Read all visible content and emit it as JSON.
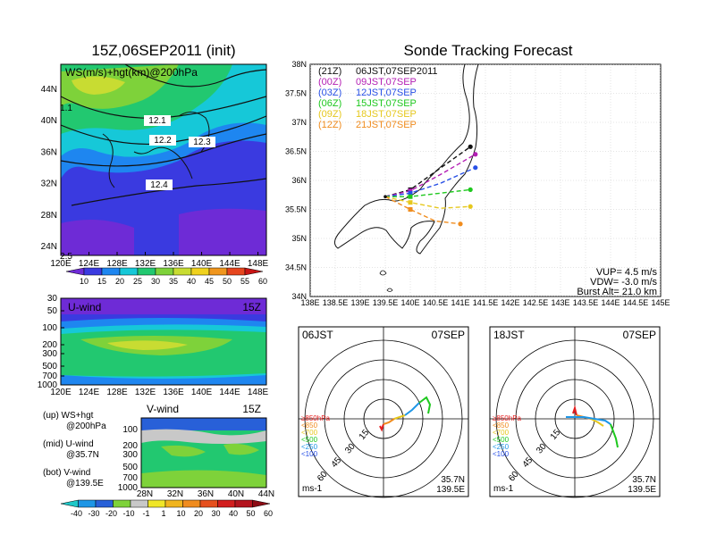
{
  "left_title": "15Z,06SEP2011 (init)",
  "right_title": "Sonde Tracking Forecast",
  "map_panel": {
    "label": "WS(m/s)+hgt(km)@200hPa",
    "x_ticks": [
      "120E",
      "124E",
      "128E",
      "132E",
      "136E",
      "140E",
      "144E",
      "148E"
    ],
    "y_ticks": [
      "44N",
      "40N",
      "36N",
      "32N",
      "28N",
      "24N"
    ],
    "contour_labels": [
      "12.1",
      "12.2",
      "12.3",
      "12.4",
      "1.1",
      "2.5"
    ],
    "colorbar": [
      "10",
      "15",
      "20",
      "25",
      "30",
      "35",
      "40",
      "45",
      "50",
      "55",
      "60"
    ],
    "colorbar_colors": [
      "#6e2bd6",
      "#3a3ae0",
      "#1e86f0",
      "#16c8d8",
      "#22c870",
      "#7ed23a",
      "#c8dc32",
      "#f0d21e",
      "#f0961e",
      "#e6461e",
      "#c81414"
    ]
  },
  "u_panel": {
    "label": "U-wind",
    "time": "15Z",
    "y_ticks": [
      "30",
      "50",
      "100",
      "200",
      "300",
      "500",
      "700",
      "1000"
    ],
    "x_ticks": [
      "120E",
      "124E",
      "128E",
      "132E",
      "136E",
      "140E",
      "144E",
      "148E"
    ]
  },
  "v_panel": {
    "label": "V-wind",
    "time": "15Z",
    "y_ticks": [
      "100",
      "200",
      "300",
      "500",
      "700",
      "1000"
    ],
    "x_ticks": [
      "28N",
      "32N",
      "36N",
      "40N",
      "44N"
    ]
  },
  "legend_notes": [
    [
      "(up) WS+hgt",
      "@200hPa"
    ],
    [
      "(mid) U-wind",
      "@35.7N"
    ],
    [
      "(bot) V-wind",
      "@139.5E"
    ]
  ],
  "bottom_colorbar": {
    "labels": [
      "-40",
      "-30",
      "-20",
      "-10",
      "-1",
      "1",
      "10",
      "20",
      "30",
      "40",
      "50",
      "60"
    ],
    "colors": [
      "#1ec8c8",
      "#1e96e6",
      "#2860d8",
      "#7ed23a",
      "#c8c8c8",
      "#f0e628",
      "#f0b41e",
      "#f08c1e",
      "#e6501e",
      "#d21e1e",
      "#b4141e",
      "#8c0a14"
    ]
  },
  "track_map": {
    "x_ticks": [
      "138E",
      "138.5E",
      "139E",
      "139.5E",
      "140E",
      "140.5E",
      "141E",
      "141.5E",
      "142E",
      "142.5E",
      "143E",
      "143.5E",
      "144E",
      "144.5E",
      "145E"
    ],
    "y_ticks": [
      "38N",
      "37.5N",
      "37N",
      "36.5N",
      "36N",
      "35.5N",
      "35N",
      "34.5N",
      "34N"
    ],
    "legend": [
      {
        "utc": "(21Z)",
        "jst": "06JST,07SEP2011",
        "color": "#111111"
      },
      {
        "utc": "(00Z)",
        "jst": "09JST,07SEP",
        "color": "#b41eb4"
      },
      {
        "utc": "(03Z)",
        "jst": "12JST,07SEP",
        "color": "#2850e6"
      },
      {
        "utc": "(06Z)",
        "jst": "15JST,07SEP",
        "color": "#1ec81e"
      },
      {
        "utc": "(09Z)",
        "jst": "18JST,07SEP",
        "color": "#e6c81e"
      },
      {
        "utc": "(12Z)",
        "jst": "21JST,07SEP",
        "color": "#f08c1e"
      }
    ],
    "vup": "VUP= 4.5 m/s",
    "vdw": "VDW= -3.0 m/s",
    "burst": "Burst Alt= 21.0 km"
  },
  "chart_data": [
    {
      "type": "line",
      "title": "Sonde Tracking Forecast",
      "x_unit": "deg E",
      "y_unit": "deg N",
      "xlim": [
        138,
        145
      ],
      "ylim": [
        34,
        38
      ],
      "launch_point": [
        139.5,
        35.72
      ],
      "series": [
        {
          "name": "06JST,07SEP2011",
          "color": "#111111",
          "points": [
            [
              139.5,
              35.72
            ],
            [
              140.0,
              35.84
            ],
            [
              140.5,
              36.15
            ],
            [
              141.2,
              36.58
            ]
          ]
        },
        {
          "name": "09JST,07SEP",
          "color": "#b41eb4",
          "points": [
            [
              139.5,
              35.72
            ],
            [
              140.0,
              35.82
            ],
            [
              140.6,
              36.1
            ],
            [
              141.3,
              36.45
            ]
          ]
        },
        {
          "name": "12JST,07SEP",
          "color": "#2850e6",
          "points": [
            [
              139.5,
              35.72
            ],
            [
              140.0,
              35.78
            ],
            [
              140.6,
              35.95
            ],
            [
              141.3,
              36.22
            ]
          ]
        },
        {
          "name": "15JST,07SEP",
          "color": "#1ec81e",
          "points": [
            [
              139.5,
              35.72
            ],
            [
              140.0,
              35.72
            ],
            [
              140.6,
              35.78
            ],
            [
              141.2,
              35.84
            ]
          ]
        },
        {
          "name": "18JST,07SEP",
          "color": "#e6c81e",
          "points": [
            [
              139.5,
              35.72
            ],
            [
              140.0,
              35.62
            ],
            [
              140.6,
              35.52
            ],
            [
              141.2,
              35.55
            ]
          ]
        },
        {
          "name": "21JST,07SEP",
          "color": "#f08c1e",
          "points": [
            [
              139.5,
              35.72
            ],
            [
              140.0,
              35.5
            ],
            [
              140.5,
              35.3
            ],
            [
              141.0,
              35.25
            ]
          ]
        }
      ]
    }
  ],
  "polar_left": {
    "time": "06JST",
    "date": "07SEP",
    "rings": [
      "15",
      "30",
      "45",
      "60"
    ],
    "levels": [
      "≥850hPa",
      "<850",
      "<700",
      "<500",
      "<250",
      "<100"
    ],
    "level_colors": [
      "#e61e1e",
      "#f08c1e",
      "#e6c81e",
      "#1ec81e",
      "#1e96e6",
      "#2850e6"
    ],
    "loc1": "35.7N",
    "loc2": "139.5E",
    "unit": "ms-1"
  },
  "polar_right": {
    "time": "18JST",
    "date": "07SEP",
    "rings": [
      "15",
      "30",
      "45",
      "60"
    ],
    "levels": [
      "≥850hPa",
      "<850",
      "<700",
      "<500",
      "<250",
      "<100"
    ],
    "level_colors": [
      "#e61e1e",
      "#f08c1e",
      "#e6c81e",
      "#1ec81e",
      "#1e96e6",
      "#2850e6"
    ],
    "loc1": "35.7N",
    "loc2": "139.5E",
    "unit": "ms-1"
  }
}
